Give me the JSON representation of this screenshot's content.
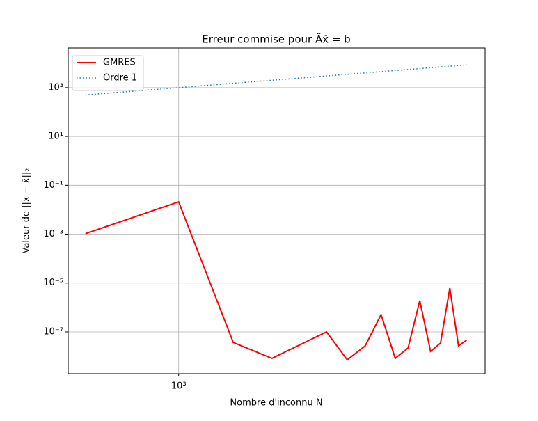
{
  "chart_data": {
    "type": "line",
    "title": "Erreur commise pour Ãx̃ = b",
    "xlabel": "Nombre d'inconnu N",
    "ylabel": "Valeur de ||x − x̃||₂",
    "xscale": "log",
    "yscale": "log",
    "grid": true,
    "legend": "upper left",
    "x": [
      500,
      1000,
      1500,
      2000,
      3000,
      3500,
      4000,
      4500,
      5000,
      5500,
      6000,
      6500,
      7000,
      7500,
      8000,
      8500
    ],
    "series": [
      {
        "name": "GMRES",
        "color": "#ff0000",
        "linestyle": "solid",
        "values": [
          0.00105,
          0.021,
          3.7e-08,
          8.3e-09,
          1e-07,
          7.2e-09,
          2.7e-08,
          5.1e-07,
          8.3e-09,
          2.2e-08,
          1.9e-06,
          1.6e-08,
          3.5e-08,
          6.2e-06,
          2.7e-08,
          4.6e-08
        ]
      },
      {
        "name": "Ordre 1",
        "color": "#1f77b4",
        "linestyle": "dotted",
        "values": [
          500,
          1000,
          1500,
          2000,
          3000,
          3500,
          4000,
          4500,
          5000,
          5500,
          6000,
          6500,
          7000,
          7500,
          8000,
          8500
        ]
      }
    ],
    "xlim": [
      440,
      9750
    ],
    "ylim": [
      1.95e-09,
      41700
    ],
    "xticks": [
      {
        "value": 1000,
        "label": "10³"
      }
    ],
    "yticks": [
      {
        "value": 1e-07,
        "label": "10⁻⁷"
      },
      {
        "value": 1e-05,
        "label": "10⁻⁵"
      },
      {
        "value": 0.001,
        "label": "10⁻³"
      },
      {
        "value": 0.1,
        "label": "10⁻¹"
      },
      {
        "value": 10,
        "label": "10¹"
      },
      {
        "value": 1000,
        "label": "10³"
      }
    ]
  }
}
